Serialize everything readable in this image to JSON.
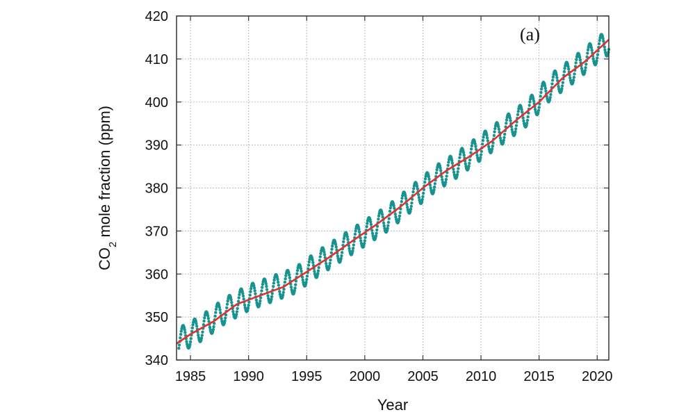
{
  "chart_data": {
    "type": "line",
    "title": "",
    "panel_label": "(a)",
    "xlabel": "Year",
    "ylabel_parts": {
      "pre": "CO",
      "sub": "2",
      "post": " mole fraction (ppm)"
    },
    "xlim": [
      1983.8,
      2021.0
    ],
    "ylim": [
      340,
      420
    ],
    "x_ticks": [
      1985,
      1990,
      1995,
      2000,
      2005,
      2010,
      2015,
      2020
    ],
    "y_ticks": [
      340,
      350,
      360,
      370,
      380,
      390,
      400,
      410,
      420
    ],
    "grid": true,
    "legend": "none",
    "series": [
      {
        "style": "dotted",
        "color": "#17928f",
        "seasonal_amplitude_ppm": 6,
        "x": [
          1984,
          1986,
          1988,
          1990,
          1992,
          1994,
          1996,
          1998,
          2000,
          2002,
          2004,
          2006,
          2008,
          2010,
          2012,
          2014,
          2016,
          2018,
          2020,
          2021
        ],
        "y": [
          344.5,
          347.5,
          351.5,
          354.5,
          356.5,
          358.5,
          362.5,
          366.0,
          369.5,
          373.0,
          377.5,
          382.0,
          385.5,
          389.5,
          393.5,
          397.5,
          403.5,
          407.5,
          412.0,
          414.0
        ]
      },
      {
        "style": "solid",
        "color": "#e03030",
        "x": [
          1983.8,
          1985,
          1987,
          1989,
          1991,
          1993,
          1995,
          1997,
          1999,
          2001,
          2003,
          2005,
          2007,
          2009,
          2011,
          2013,
          2015,
          2017,
          2019,
          2021.0
        ],
        "y": [
          343.8,
          346.0,
          349.0,
          353.0,
          355.0,
          357.0,
          360.5,
          364.0,
          367.8,
          371.5,
          375.5,
          380.0,
          384.0,
          387.3,
          391.0,
          395.7,
          400.0,
          405.5,
          409.5,
          414.5
        ]
      }
    ]
  }
}
